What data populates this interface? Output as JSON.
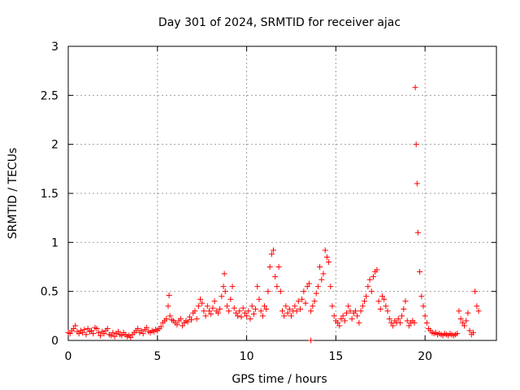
{
  "chart_data": {
    "type": "scatter",
    "title": "Day 301 of 2024, SRMTID for receiver ajac",
    "xlabel": "GPS time / hours",
    "ylabel": "SRMTID / TECUs",
    "xlim": [
      0,
      24
    ],
    "ylim": [
      0,
      3
    ],
    "xticks": [
      0,
      5,
      10,
      15,
      20
    ],
    "yticks": [
      0,
      0.5,
      1,
      1.5,
      2,
      2.5,
      3
    ],
    "ytick_labels": [
      "0",
      "0.5",
      "1",
      "1.5",
      "2",
      "2.5",
      "3"
    ],
    "grid": true,
    "marker": "+",
    "color": "#ff0000",
    "series": [
      {
        "name": "SRMTID",
        "points": [
          [
            0.0,
            0.08
          ],
          [
            0.1,
            0.07
          ],
          [
            0.2,
            0.1
          ],
          [
            0.3,
            0.12
          ],
          [
            0.4,
            0.15
          ],
          [
            0.5,
            0.09
          ],
          [
            0.6,
            0.07
          ],
          [
            0.7,
            0.1
          ],
          [
            0.8,
            0.08
          ],
          [
            0.9,
            0.11
          ],
          [
            1.0,
            0.06
          ],
          [
            1.1,
            0.12
          ],
          [
            1.2,
            0.09
          ],
          [
            1.3,
            0.1
          ],
          [
            1.4,
            0.07
          ],
          [
            1.5,
            0.13
          ],
          [
            1.6,
            0.12
          ],
          [
            1.7,
            0.08
          ],
          [
            1.8,
            0.05
          ],
          [
            1.9,
            0.09
          ],
          [
            2.0,
            0.07
          ],
          [
            2.1,
            0.1
          ],
          [
            2.2,
            0.12
          ],
          [
            2.3,
            0.06
          ],
          [
            2.4,
            0.05
          ],
          [
            2.5,
            0.08
          ],
          [
            2.6,
            0.04
          ],
          [
            2.7,
            0.07
          ],
          [
            2.8,
            0.09
          ],
          [
            2.9,
            0.06
          ],
          [
            3.0,
            0.05
          ],
          [
            3.1,
            0.08
          ],
          [
            3.2,
            0.06
          ],
          [
            3.3,
            0.04
          ],
          [
            3.4,
            0.05
          ],
          [
            3.5,
            0.03
          ],
          [
            3.6,
            0.06
          ],
          [
            3.7,
            0.08
          ],
          [
            3.8,
            0.1
          ],
          [
            3.9,
            0.12
          ],
          [
            4.0,
            0.08
          ],
          [
            4.1,
            0.1
          ],
          [
            4.2,
            0.07
          ],
          [
            4.3,
            0.11
          ],
          [
            4.4,
            0.13
          ],
          [
            4.5,
            0.09
          ],
          [
            4.6,
            0.08
          ],
          [
            4.7,
            0.1
          ],
          [
            4.8,
            0.09
          ],
          [
            4.9,
            0.11
          ],
          [
            5.0,
            0.1
          ],
          [
            5.1,
            0.12
          ],
          [
            5.2,
            0.14
          ],
          [
            5.3,
            0.18
          ],
          [
            5.4,
            0.2
          ],
          [
            5.5,
            0.22
          ],
          [
            5.6,
            0.35
          ],
          [
            5.65,
            0.46
          ],
          [
            5.7,
            0.25
          ],
          [
            5.8,
            0.21
          ],
          [
            5.9,
            0.2
          ],
          [
            6.0,
            0.18
          ],
          [
            6.1,
            0.16
          ],
          [
            6.2,
            0.2
          ],
          [
            6.3,
            0.22
          ],
          [
            6.4,
            0.15
          ],
          [
            6.5,
            0.18
          ],
          [
            6.6,
            0.2
          ],
          [
            6.7,
            0.19
          ],
          [
            6.8,
            0.24
          ],
          [
            6.9,
            0.21
          ],
          [
            7.0,
            0.28
          ],
          [
            7.1,
            0.3
          ],
          [
            7.2,
            0.22
          ],
          [
            7.3,
            0.35
          ],
          [
            7.4,
            0.42
          ],
          [
            7.5,
            0.38
          ],
          [
            7.6,
            0.3
          ],
          [
            7.7,
            0.25
          ],
          [
            7.8,
            0.35
          ],
          [
            7.9,
            0.3
          ],
          [
            8.0,
            0.27
          ],
          [
            8.1,
            0.33
          ],
          [
            8.2,
            0.4
          ],
          [
            8.3,
            0.3
          ],
          [
            8.4,
            0.28
          ],
          [
            8.5,
            0.32
          ],
          [
            8.6,
            0.45
          ],
          [
            8.7,
            0.55
          ],
          [
            8.75,
            0.68
          ],
          [
            8.8,
            0.5
          ],
          [
            8.9,
            0.35
          ],
          [
            9.0,
            0.3
          ],
          [
            9.1,
            0.42
          ],
          [
            9.2,
            0.55
          ],
          [
            9.3,
            0.33
          ],
          [
            9.4,
            0.28
          ],
          [
            9.5,
            0.25
          ],
          [
            9.6,
            0.3
          ],
          [
            9.7,
            0.24
          ],
          [
            9.8,
            0.33
          ],
          [
            9.9,
            0.28
          ],
          [
            10.0,
            0.25
          ],
          [
            10.1,
            0.3
          ],
          [
            10.2,
            0.22
          ],
          [
            10.3,
            0.35
          ],
          [
            10.4,
            0.27
          ],
          [
            10.5,
            0.32
          ],
          [
            10.6,
            0.55
          ],
          [
            10.7,
            0.42
          ],
          [
            10.8,
            0.3
          ],
          [
            10.9,
            0.25
          ],
          [
            11.0,
            0.35
          ],
          [
            11.1,
            0.32
          ],
          [
            11.2,
            0.5
          ],
          [
            11.3,
            0.75
          ],
          [
            11.4,
            0.88
          ],
          [
            11.5,
            0.92
          ],
          [
            11.6,
            0.65
          ],
          [
            11.7,
            0.55
          ],
          [
            11.8,
            0.75
          ],
          [
            11.9,
            0.5
          ],
          [
            12.0,
            0.3
          ],
          [
            12.1,
            0.25
          ],
          [
            12.2,
            0.35
          ],
          [
            12.3,
            0.28
          ],
          [
            12.4,
            0.32
          ],
          [
            12.5,
            0.25
          ],
          [
            12.6,
            0.3
          ],
          [
            12.7,
            0.35
          ],
          [
            12.8,
            0.3
          ],
          [
            12.9,
            0.4
          ],
          [
            13.0,
            0.32
          ],
          [
            13.1,
            0.42
          ],
          [
            13.2,
            0.5
          ],
          [
            13.3,
            0.38
          ],
          [
            13.4,
            0.55
          ],
          [
            13.5,
            0.58
          ],
          [
            13.6,
            0.3
          ],
          [
            13.7,
            0.35
          ],
          [
            13.8,
            0.4
          ],
          [
            13.9,
            0.48
          ],
          [
            14.0,
            0.55
          ],
          [
            14.1,
            0.75
          ],
          [
            14.2,
            0.62
          ],
          [
            14.3,
            0.68
          ],
          [
            14.4,
            0.92
          ],
          [
            14.5,
            0.85
          ],
          [
            14.6,
            0.8
          ],
          [
            14.7,
            0.55
          ],
          [
            14.8,
            0.35
          ],
          [
            14.9,
            0.25
          ],
          [
            15.0,
            0.2
          ],
          [
            15.1,
            0.18
          ],
          [
            15.2,
            0.15
          ],
          [
            15.3,
            0.22
          ],
          [
            15.4,
            0.25
          ],
          [
            15.5,
            0.2
          ],
          [
            15.6,
            0.28
          ],
          [
            15.7,
            0.35
          ],
          [
            15.8,
            0.3
          ],
          [
            15.9,
            0.22
          ],
          [
            16.0,
            0.28
          ],
          [
            16.1,
            0.3
          ],
          [
            16.2,
            0.25
          ],
          [
            16.3,
            0.18
          ],
          [
            16.4,
            0.3
          ],
          [
            16.5,
            0.35
          ],
          [
            16.6,
            0.4
          ],
          [
            16.7,
            0.45
          ],
          [
            16.8,
            0.55
          ],
          [
            16.9,
            0.62
          ],
          [
            17.0,
            0.5
          ],
          [
            17.1,
            0.65
          ],
          [
            17.2,
            0.7
          ],
          [
            17.3,
            0.72
          ],
          [
            17.4,
            0.4
          ],
          [
            17.5,
            0.32
          ],
          [
            17.6,
            0.45
          ],
          [
            17.7,
            0.42
          ],
          [
            17.8,
            0.35
          ],
          [
            17.9,
            0.3
          ],
          [
            18.0,
            0.22
          ],
          [
            18.1,
            0.18
          ],
          [
            18.2,
            0.15
          ],
          [
            18.3,
            0.2
          ],
          [
            18.4,
            0.18
          ],
          [
            18.5,
            0.22
          ],
          [
            18.6,
            0.18
          ],
          [
            18.7,
            0.25
          ],
          [
            18.8,
            0.32
          ],
          [
            18.9,
            0.4
          ],
          [
            19.0,
            0.2
          ],
          [
            19.1,
            0.15
          ],
          [
            19.2,
            0.18
          ],
          [
            19.3,
            0.2
          ],
          [
            19.4,
            0.18
          ],
          [
            19.45,
            2.58
          ],
          [
            19.5,
            2.0
          ],
          [
            19.55,
            1.6
          ],
          [
            19.6,
            1.1
          ],
          [
            19.7,
            0.7
          ],
          [
            19.8,
            0.45
          ],
          [
            19.9,
            0.35
          ],
          [
            20.0,
            0.25
          ],
          [
            20.1,
            0.18
          ],
          [
            20.2,
            0.12
          ],
          [
            20.3,
            0.1
          ],
          [
            20.4,
            0.08
          ],
          [
            20.5,
            0.07
          ],
          [
            20.6,
            0.08
          ],
          [
            20.7,
            0.06
          ],
          [
            20.8,
            0.07
          ],
          [
            20.9,
            0.06
          ],
          [
            21.0,
            0.05
          ],
          [
            21.1,
            0.07
          ],
          [
            21.2,
            0.06
          ],
          [
            21.3,
            0.05
          ],
          [
            21.4,
            0.07
          ],
          [
            21.5,
            0.06
          ],
          [
            21.6,
            0.05
          ],
          [
            21.7,
            0.06
          ],
          [
            21.8,
            0.07
          ],
          [
            21.9,
            0.3
          ],
          [
            22.0,
            0.22
          ],
          [
            22.1,
            0.18
          ],
          [
            22.2,
            0.15
          ],
          [
            22.3,
            0.2
          ],
          [
            22.4,
            0.28
          ],
          [
            22.5,
            0.1
          ],
          [
            22.6,
            0.06
          ],
          [
            22.7,
            0.08
          ],
          [
            22.8,
            0.5
          ],
          [
            22.9,
            0.35
          ],
          [
            23.0,
            0.3
          ],
          [
            13.6,
            0.0
          ]
        ]
      }
    ]
  }
}
